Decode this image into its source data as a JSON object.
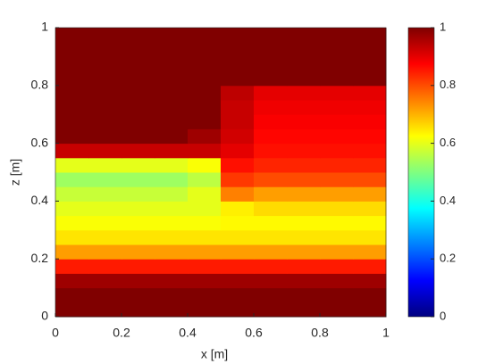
{
  "chart_data": {
    "type": "heatmap",
    "colormap": "jet",
    "xlabel": "x [m]",
    "ylabel": "z [m]",
    "x": [
      0.05,
      0.15,
      0.25,
      0.35,
      0.45,
      0.55,
      0.65,
      0.75,
      0.85,
      0.95
    ],
    "y": [
      0.025,
      0.075,
      0.125,
      0.175,
      0.225,
      0.275,
      0.325,
      0.375,
      0.425,
      0.475,
      0.525,
      0.575,
      0.625,
      0.675,
      0.725,
      0.775,
      0.825,
      0.875,
      0.925,
      0.975
    ],
    "cell_width": 0.1,
    "cell_height": 0.05,
    "values": [
      [
        1,
        1,
        1,
        1,
        1,
        1,
        1,
        1,
        1,
        1
      ],
      [
        1,
        1,
        1,
        1,
        1,
        1,
        1,
        1,
        1,
        1
      ],
      [
        0.97,
        0.97,
        0.97,
        0.97,
        0.97,
        0.97,
        0.97,
        0.97,
        0.97,
        0.97
      ],
      [
        0.85,
        0.85,
        0.85,
        0.85,
        0.85,
        0.85,
        0.85,
        0.85,
        0.85,
        0.85
      ],
      [
        0.72,
        0.72,
        0.72,
        0.72,
        0.72,
        0.72,
        0.72,
        0.72,
        0.72,
        0.72
      ],
      [
        0.65,
        0.65,
        0.65,
        0.65,
        0.65,
        0.65,
        0.65,
        0.65,
        0.65,
        0.65
      ],
      [
        0.62,
        0.62,
        0.62,
        0.62,
        0.62,
        0.63,
        0.63,
        0.63,
        0.63,
        0.63
      ],
      [
        0.6,
        0.6,
        0.6,
        0.6,
        0.6,
        0.64,
        0.66,
        0.66,
        0.66,
        0.66
      ],
      [
        0.57,
        0.57,
        0.57,
        0.57,
        0.6,
        0.75,
        0.72,
        0.72,
        0.72,
        0.72
      ],
      [
        0.53,
        0.53,
        0.53,
        0.53,
        0.56,
        0.82,
        0.8,
        0.8,
        0.8,
        0.8
      ],
      [
        0.6,
        0.6,
        0.6,
        0.6,
        0.62,
        0.86,
        0.84,
        0.84,
        0.84,
        0.84
      ],
      [
        0.93,
        0.93,
        0.93,
        0.93,
        0.93,
        0.9,
        0.86,
        0.86,
        0.86,
        0.86
      ],
      [
        1,
        1,
        1,
        1,
        0.97,
        0.92,
        0.87,
        0.87,
        0.87,
        0.87
      ],
      [
        1,
        1,
        1,
        1,
        1,
        0.93,
        0.88,
        0.88,
        0.88,
        0.88
      ],
      [
        1,
        1,
        1,
        1,
        1,
        0.93,
        0.89,
        0.89,
        0.89,
        0.89
      ],
      [
        1,
        1,
        1,
        1,
        1,
        0.94,
        0.9,
        0.9,
        0.9,
        0.9
      ],
      [
        1,
        1,
        1,
        1,
        1,
        1,
        1,
        1,
        1,
        1
      ],
      [
        1,
        1,
        1,
        1,
        1,
        1,
        1,
        1,
        1,
        1
      ],
      [
        1,
        1,
        1,
        1,
        1,
        1,
        1,
        1,
        1,
        1
      ],
      [
        1,
        1,
        1,
        1,
        1,
        1,
        1,
        1,
        1,
        1
      ]
    ],
    "xlim": [
      0,
      1
    ],
    "xticks": [
      0,
      0.2,
      0.4,
      0.6,
      0.8,
      1
    ],
    "ylim": [
      0,
      1
    ],
    "yticks": [
      0,
      0.2,
      0.4,
      0.6,
      0.8,
      1
    ],
    "clim": [
      0,
      1
    ],
    "cticks": [
      0,
      0.2,
      0.4,
      0.6,
      0.8,
      1
    ]
  }
}
